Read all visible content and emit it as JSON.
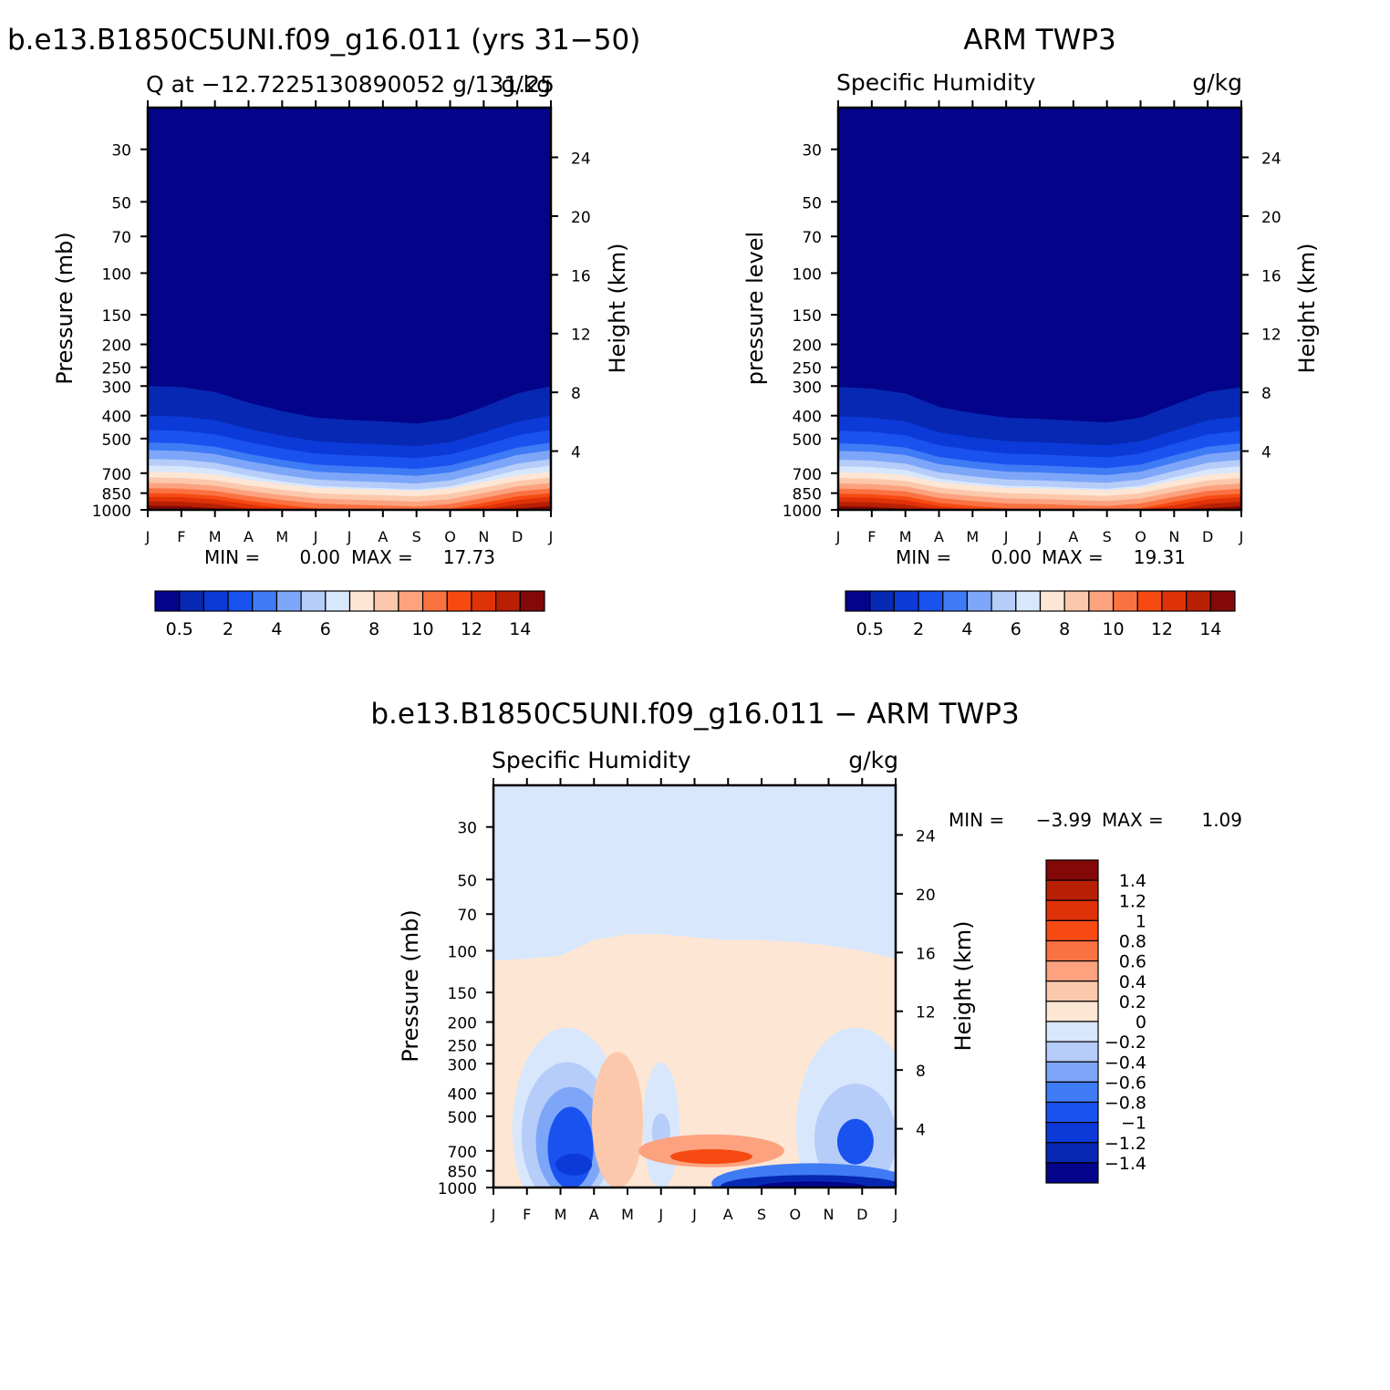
{
  "palette_abs": [
    "#03048a",
    "#0728b2",
    "#0c3ad8",
    "#1a52f0",
    "#3f7bf5",
    "#7ea6f8",
    "#b6cdfa",
    "#d8e7fc",
    "#fde6d4",
    "#fcc8ac",
    "#fca27f",
    "#fb7242",
    "#f64a12",
    "#e03208",
    "#b82004",
    "#830808"
  ],
  "palette_diff": [
    "#03048a",
    "#0728b2",
    "#0c3ad8",
    "#1a52f0",
    "#3f7bf5",
    "#7ea6f8",
    "#b6cdfa",
    "#d8e7fc",
    "#fde6d4",
    "#fcc8ac",
    "#fca27f",
    "#fb7242",
    "#f64a12",
    "#e03208",
    "#b82004",
    "#830808"
  ],
  "pressure_ticks": [
    "30",
    "50",
    "70",
    "100",
    "150",
    "200",
    "250",
    "300",
    "400",
    "500",
    "700",
    "850",
    "1000"
  ],
  "height_ticks": [
    "24",
    "20",
    "16",
    "12",
    "8",
    "4"
  ],
  "month_ticks": [
    "J",
    "F",
    "M",
    "A",
    "M",
    "J",
    "J",
    "A",
    "S",
    "O",
    "N",
    "D",
    "J"
  ],
  "abs_colorbar_labels": [
    "0.5",
    "2",
    "4",
    "6",
    "8",
    "10",
    "12",
    "14"
  ],
  "diff_colorbar_labels": [
    "1.4",
    "1.2",
    "1",
    "0.8",
    "0.6",
    "0.4",
    "0.2",
    "0",
    "−0.2",
    "−0.4",
    "−0.6",
    "−0.8",
    "−1",
    "−1.2",
    "−1.4"
  ],
  "chart_data": [
    {
      "type": "heatmap",
      "title": "b.e13.B1850C5UNI.f09_g16.011 (yrs 31−50)",
      "subtitle_left": "Q at −12.7225130890052 g/131.25",
      "subtitle_right": "g/kg",
      "ylabel": "Pressure (mb)",
      "ylabel_right": "Height (km)",
      "stats": {
        "min_label": "MIN =",
        "min": "0.00",
        "max_label": "MAX =",
        "max": "17.73"
      },
      "x": [
        "J",
        "F",
        "M",
        "A",
        "M",
        "J",
        "J",
        "A",
        "S",
        "O",
        "N",
        "D",
        "J"
      ],
      "y_pressure": [
        30,
        50,
        70,
        100,
        150,
        200,
        250,
        300,
        400,
        500,
        700,
        850,
        1000
      ],
      "contour_levels": [
        0.5,
        1,
        2,
        3,
        4,
        5,
        6,
        7,
        8,
        9,
        10,
        11,
        12,
        13,
        14
      ]
    },
    {
      "type": "heatmap",
      "title": "ARM TWP3",
      "subtitle_left": "Specific Humidity",
      "subtitle_right": "g/kg",
      "ylabel": "pressure level",
      "ylabel_right": "Height (km)",
      "stats": {
        "min_label": "MIN =",
        "min": "0.00",
        "max_label": "MAX =",
        "max": "19.31"
      },
      "x": [
        "J",
        "F",
        "M",
        "A",
        "M",
        "J",
        "J",
        "A",
        "S",
        "O",
        "N",
        "D",
        "J"
      ],
      "y_pressure": [
        30,
        50,
        70,
        100,
        150,
        200,
        250,
        300,
        400,
        500,
        700,
        850,
        1000
      ],
      "contour_levels": [
        0.5,
        1,
        2,
        3,
        4,
        5,
        6,
        7,
        8,
        9,
        10,
        11,
        12,
        13,
        14
      ]
    },
    {
      "type": "heatmap",
      "title": "b.e13.B1850C5UNI.f09_g16.011 − ARM TWP3",
      "subtitle_left": "Specific Humidity",
      "subtitle_right": "g/kg",
      "ylabel": "Pressure (mb)",
      "ylabel_right": "Height (km)",
      "stats": {
        "min_label": "MIN =",
        "min": "−3.99",
        "max_label": "MAX =",
        "max": "1.09"
      },
      "x": [
        "J",
        "F",
        "M",
        "A",
        "M",
        "J",
        "J",
        "A",
        "S",
        "O",
        "N",
        "D",
        "J"
      ],
      "y_pressure": [
        30,
        50,
        70,
        100,
        150,
        200,
        250,
        300,
        400,
        500,
        700,
        850,
        1000
      ],
      "contour_levels": [
        -1.4,
        -1.2,
        -1,
        -0.8,
        -0.6,
        -0.4,
        -0.2,
        0,
        0.2,
        0.4,
        0.6,
        0.8,
        1,
        1.2,
        1.4
      ]
    }
  ]
}
